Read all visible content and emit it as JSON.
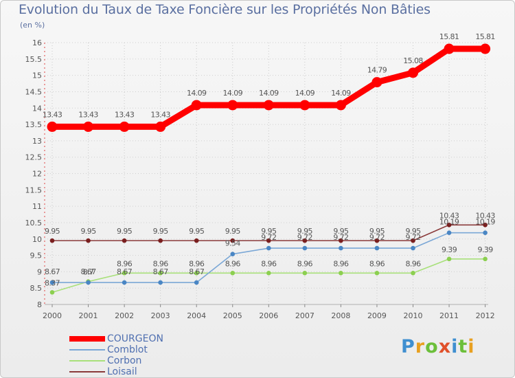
{
  "title": "Evolution du Taux de Taxe Foncière sur les Propriétés Non Bâties",
  "unit_label": "(en %)",
  "brand": [
    "P",
    "r",
    "o",
    "x",
    "i",
    "t",
    "i"
  ],
  "brand_colors": [
    "#3f8fd0",
    "#e8a020",
    "#6cbf3a",
    "#e0502a",
    "#3f8fd0",
    "#6cbf3a",
    "#e8a020"
  ],
  "chart_data": {
    "type": "line",
    "title": "Evolution du Taux de Taxe Foncière sur les Propriétés Non Bâties",
    "ylabel": "(en %)",
    "ylim": [
      8,
      16
    ],
    "yticks": [
      "8",
      "8.5",
      "9",
      "9.5",
      "10",
      "10.5",
      "11",
      "11.5",
      "12",
      "12.5",
      "13",
      "13.5",
      "14",
      "14.5",
      "15",
      "15.5",
      "16"
    ],
    "categories": [
      "2000",
      "2001",
      "2002",
      "2003",
      "2004",
      "2005",
      "2006",
      "2007",
      "2008",
      "2009",
      "2010",
      "2011",
      "2012"
    ],
    "series": [
      {
        "name": "COURGEON",
        "color": "#ff0000",
        "width": "thick",
        "values": [
          13.43,
          13.43,
          13.43,
          13.43,
          14.09,
          14.09,
          14.09,
          14.09,
          14.09,
          14.79,
          15.08,
          15.81,
          15.81
        ],
        "labels": [
          "13.43",
          "13.43",
          "13.43",
          "13.43",
          "14.09",
          "14.09",
          "14.09",
          "14.09",
          "14.09",
          "14.79",
          "15.08",
          "15.81",
          "15.81"
        ]
      },
      {
        "name": "Comblot",
        "color": "#7aa7d6",
        "width": "thin",
        "values": [
          8.67,
          8.67,
          8.67,
          8.67,
          8.67,
          9.54,
          9.72,
          9.72,
          9.72,
          9.72,
          9.72,
          10.19,
          10.19
        ],
        "labels": [
          "8.67",
          "8.67",
          "8.67",
          "8.67",
          "8.67",
          "9.54",
          "9.72",
          "9.72",
          "9.72",
          "9.72",
          "9.72",
          "10.19",
          "10.19"
        ]
      },
      {
        "name": "Corbon",
        "color": "#a8e07a",
        "width": "thin",
        "values": [
          8.37,
          8.7,
          8.96,
          8.96,
          8.96,
          8.96,
          8.96,
          8.96,
          8.96,
          8.96,
          8.96,
          9.39,
          9.39
        ],
        "labels": [
          "8.37",
          "8.7",
          "8.96",
          "8.96",
          "8.96",
          "8.96",
          "8.96",
          "8.96",
          "8.96",
          "8.96",
          "8.96",
          "9.39",
          "9.39"
        ]
      },
      {
        "name": "Loisail",
        "color": "#8a3a3a",
        "width": "thin",
        "values": [
          9.95,
          9.95,
          9.95,
          9.95,
          9.95,
          9.95,
          9.95,
          9.95,
          9.95,
          9.95,
          9.95,
          10.43,
          10.43
        ],
        "labels": [
          "9.95",
          "9.95",
          "9.95",
          "9.95",
          "9.95",
          "9.95",
          "9.95",
          "9.95",
          "9.95",
          "9.95",
          "9.95",
          "10.43",
          "10.43"
        ]
      }
    ]
  }
}
